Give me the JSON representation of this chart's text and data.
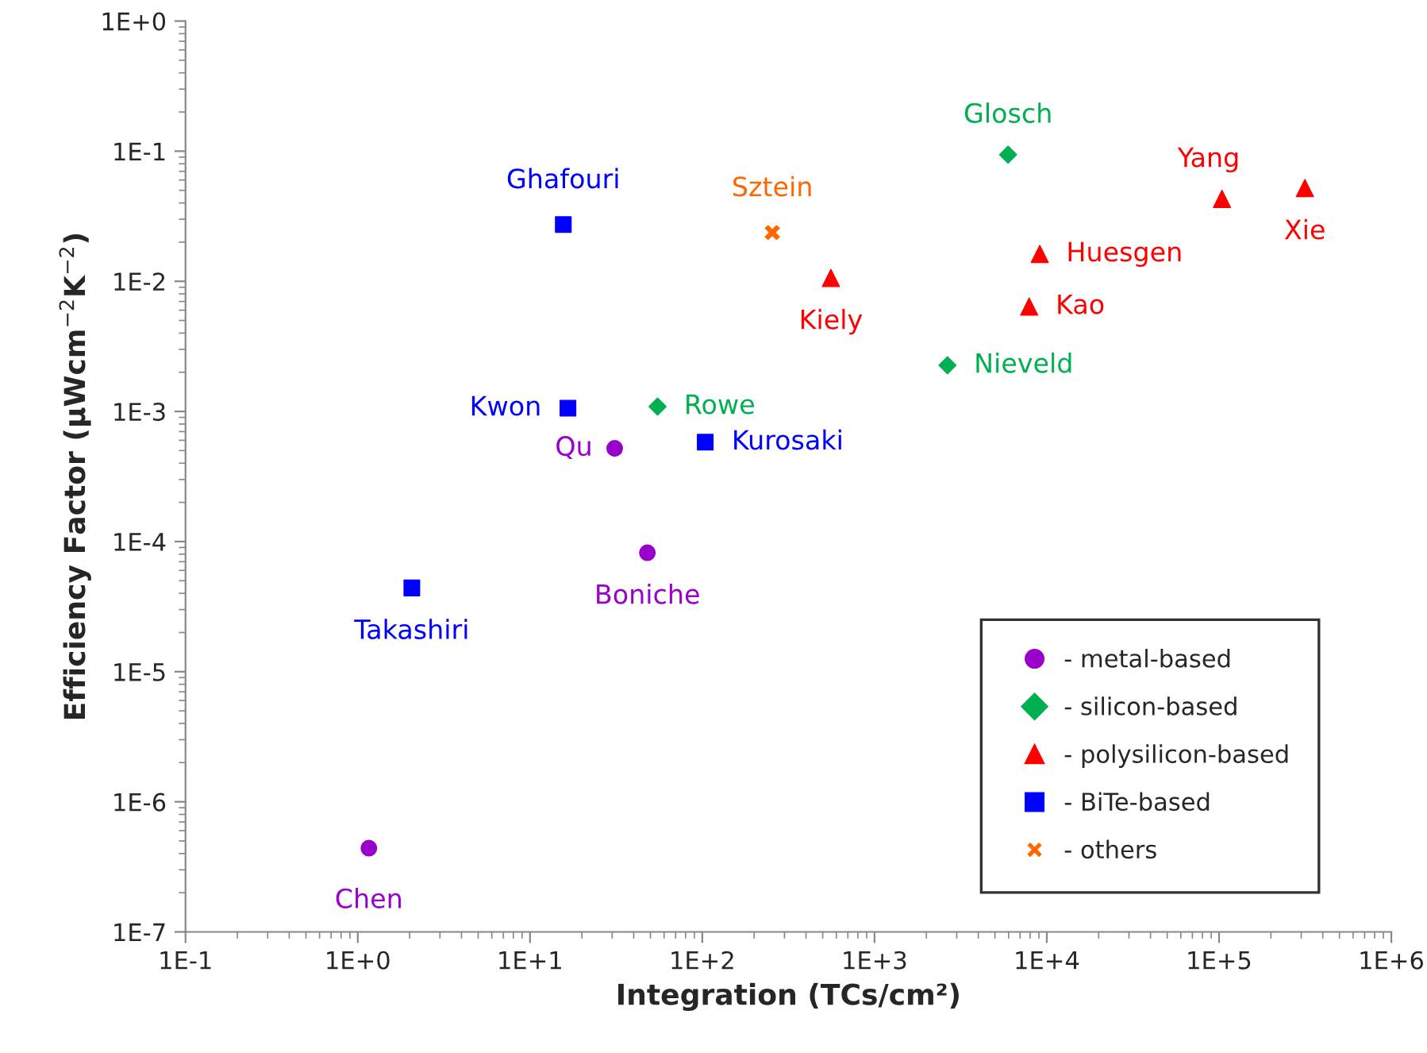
{
  "chart_data": {
    "type": "scatter",
    "xlabel": "Integration (TCs/cm²)",
    "ylabel": "Efficiency Factor (µWcm$^{−2}$K$^{−2}$)",
    "log": "xy",
    "grid": false,
    "legend": "bottom right",
    "xlim": [
      0.1,
      1000000
    ],
    "ylim": [
      1e-07,
      1
    ],
    "xticks": [
      {
        "value": 0.1,
        "label": "1E-1"
      },
      {
        "value": 1,
        "label": "1E+0"
      },
      {
        "value": 10,
        "label": "1E+1"
      },
      {
        "value": 100,
        "label": "1E+2"
      },
      {
        "value": 1000,
        "label": "1E+3"
      },
      {
        "value": 10000,
        "label": "1E+4"
      },
      {
        "value": 100000,
        "label": "1E+5"
      },
      {
        "value": 1000000,
        "label": "1E+6"
      }
    ],
    "yticks": [
      {
        "value": 1e-07,
        "label": "1E-7"
      },
      {
        "value": 1e-06,
        "label": "1E-6"
      },
      {
        "value": 1e-05,
        "label": "1E-5"
      },
      {
        "value": 0.0001,
        "label": "1E-4"
      },
      {
        "value": 0.001,
        "label": "1E-3"
      },
      {
        "value": 0.01,
        "label": "1E-2"
      },
      {
        "value": 0.1,
        "label": "1E-1"
      },
      {
        "value": 1,
        "label": "1E+0"
      }
    ],
    "series": [
      {
        "name": "- metal-based",
        "color": "#9900cc",
        "marker": "circle",
        "x": [
          1.16,
          31,
          48
        ],
        "values": [
          4.4e-07,
          0.00052,
          8.2e-05
        ]
      },
      {
        "name": "- silicon-based",
        "color": "#00b050",
        "marker": "diamond",
        "x": [
          55,
          2650,
          5960
        ],
        "values": [
          0.00109,
          0.00226,
          0.094
        ]
      },
      {
        "name": "- polysilicon-based",
        "color": "#ff0000",
        "marker": "triangle",
        "x": [
          558,
          9100,
          7900,
          104000,
          315000
        ],
        "values": [
          0.0106,
          0.0162,
          0.0064,
          0.043,
          0.052
        ]
      },
      {
        "name": "- BiTe-based",
        "color": "#0000ff",
        "marker": "square",
        "x": [
          15.6,
          16.6,
          104,
          2.06
        ],
        "values": [
          0.0273,
          0.00106,
          0.00058,
          4.4e-05
        ]
      },
      {
        "name": "- others",
        "color": "#ff6600",
        "marker": "cross",
        "x": [
          255
        ],
        "values": [
          0.0237
        ]
      }
    ],
    "annotations": [
      {
        "text": "Chen",
        "x": 1.16,
        "y": 4.4e-07
      },
      {
        "text": "Qu",
        "x": 31,
        "y": 0.00052
      },
      {
        "text": "Boniche",
        "x": 48,
        "y": 8.2e-05
      },
      {
        "text": "Rowe",
        "x": 55,
        "y": 0.00109
      },
      {
        "text": "Nieveld",
        "x": 2650,
        "y": 0.00226
      },
      {
        "text": "Glosch",
        "x": 5960,
        "y": 0.094
      },
      {
        "text": "Kiely",
        "x": 558,
        "y": 0.0106
      },
      {
        "text": "Huesgen",
        "x": 9100,
        "y": 0.0162
      },
      {
        "text": "Kao",
        "x": 7900,
        "y": 0.0064
      },
      {
        "text": "Yang",
        "x": 104000,
        "y": 0.043
      },
      {
        "text": "Xie",
        "x": 315000,
        "y": 0.052
      },
      {
        "text": "Ghafouri",
        "x": 15.6,
        "y": 0.0273
      },
      {
        "text": "Kwon",
        "x": 16.6,
        "y": 0.00106
      },
      {
        "text": "Kurosaki",
        "x": 104,
        "y": 0.00058
      },
      {
        "text": "Takashiri",
        "x": 2.06,
        "y": 4.4e-05
      },
      {
        "text": "Sztein",
        "x": 255,
        "y": 0.0237
      }
    ]
  }
}
